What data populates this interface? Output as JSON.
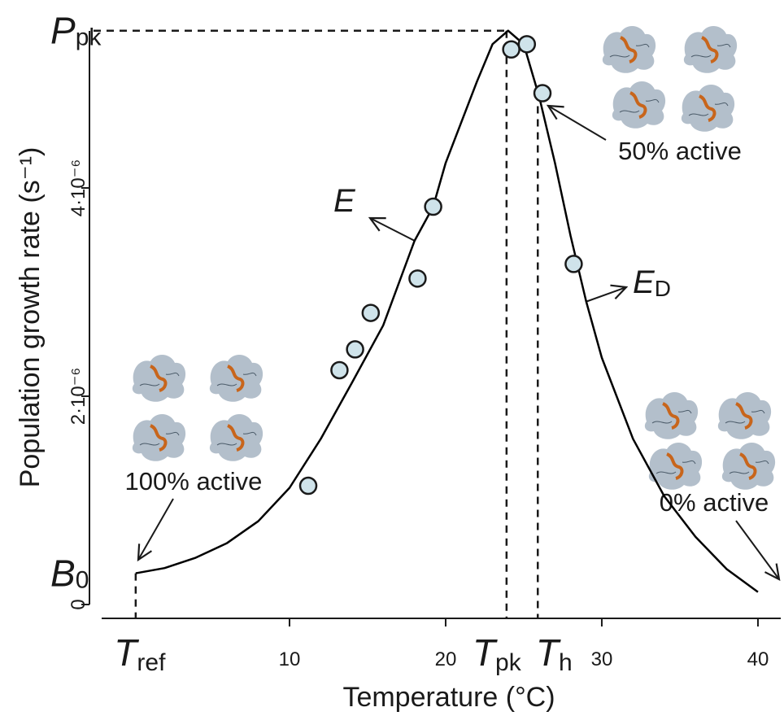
{
  "chart_data": {
    "type": "scatter",
    "x_label": "Temperature (°C)",
    "y_label": "Population growth rate (s⁻¹)",
    "xlim": [
      -2.03,
      41.46
    ],
    "ylim": [
      -1.33e-07,
      5.664e-06
    ],
    "xticks": [
      10,
      20,
      30,
      40
    ],
    "yticks": [
      0,
      {
        "value": 2e-06,
        "label": "2·10⁻⁶"
      },
      {
        "value": 4e-06,
        "label": "4·10⁻⁶"
      }
    ],
    "points": {
      "color": "#cfe3ea",
      "x": [
        11.2,
        13.2,
        14.2,
        15.2,
        18.2,
        19.2,
        24.2,
        25.2,
        26.2,
        28.2
      ],
      "values": [
        1.14e-06,
        2.25e-06,
        2.45e-06,
        2.8e-06,
        3.13e-06,
        3.82e-06,
        5.33e-06,
        5.38e-06,
        4.91e-06,
        3.27e-06
      ]
    },
    "curve": {
      "color": "#000000",
      "x": [
        0.15,
        2,
        4,
        6,
        8,
        10,
        12,
        14,
        16,
        18,
        19.2,
        20,
        22,
        23,
        24,
        25,
        26,
        27,
        28,
        29,
        30,
        32,
        34,
        36,
        38,
        40
      ],
      "values": [
        3e-07,
        3.5e-07,
        4.5e-07,
        5.9e-07,
        8e-07,
        1.12e-06,
        1.59e-06,
        2.13e-06,
        2.68e-06,
        3.49e-06,
        3.82e-06,
        4.24e-06,
        5.02e-06,
        5.38e-06,
        5.51e-06,
        5.38e-06,
        4.87e-06,
        4.24e-06,
        3.54e-06,
        2.91e-06,
        2.37e-06,
        1.59e-06,
        1.04e-06,
        6.5e-07,
        3.4e-07,
        1.2e-07
      ]
    },
    "x_markers": [
      {
        "value": 0.15,
        "symbol": "T",
        "subscript": "ref"
      },
      {
        "value": 23.9,
        "symbol": "T",
        "subscript": "pk"
      },
      {
        "value": 25.9,
        "symbol": "T",
        "subscript": "h"
      }
    ],
    "y_markers": [
      {
        "value": 3e-07,
        "symbol": "B",
        "subscript": "0"
      },
      {
        "value": 5.51e-06,
        "symbol": "P",
        "subscript": "pk"
      }
    ],
    "annotations": {
      "activation": {
        "symbol": "E"
      },
      "deactivation": {
        "symbol": "E",
        "subscript": "D"
      },
      "full_active": "100% active",
      "half_active": "50% active",
      "none_active": "0% active"
    }
  }
}
